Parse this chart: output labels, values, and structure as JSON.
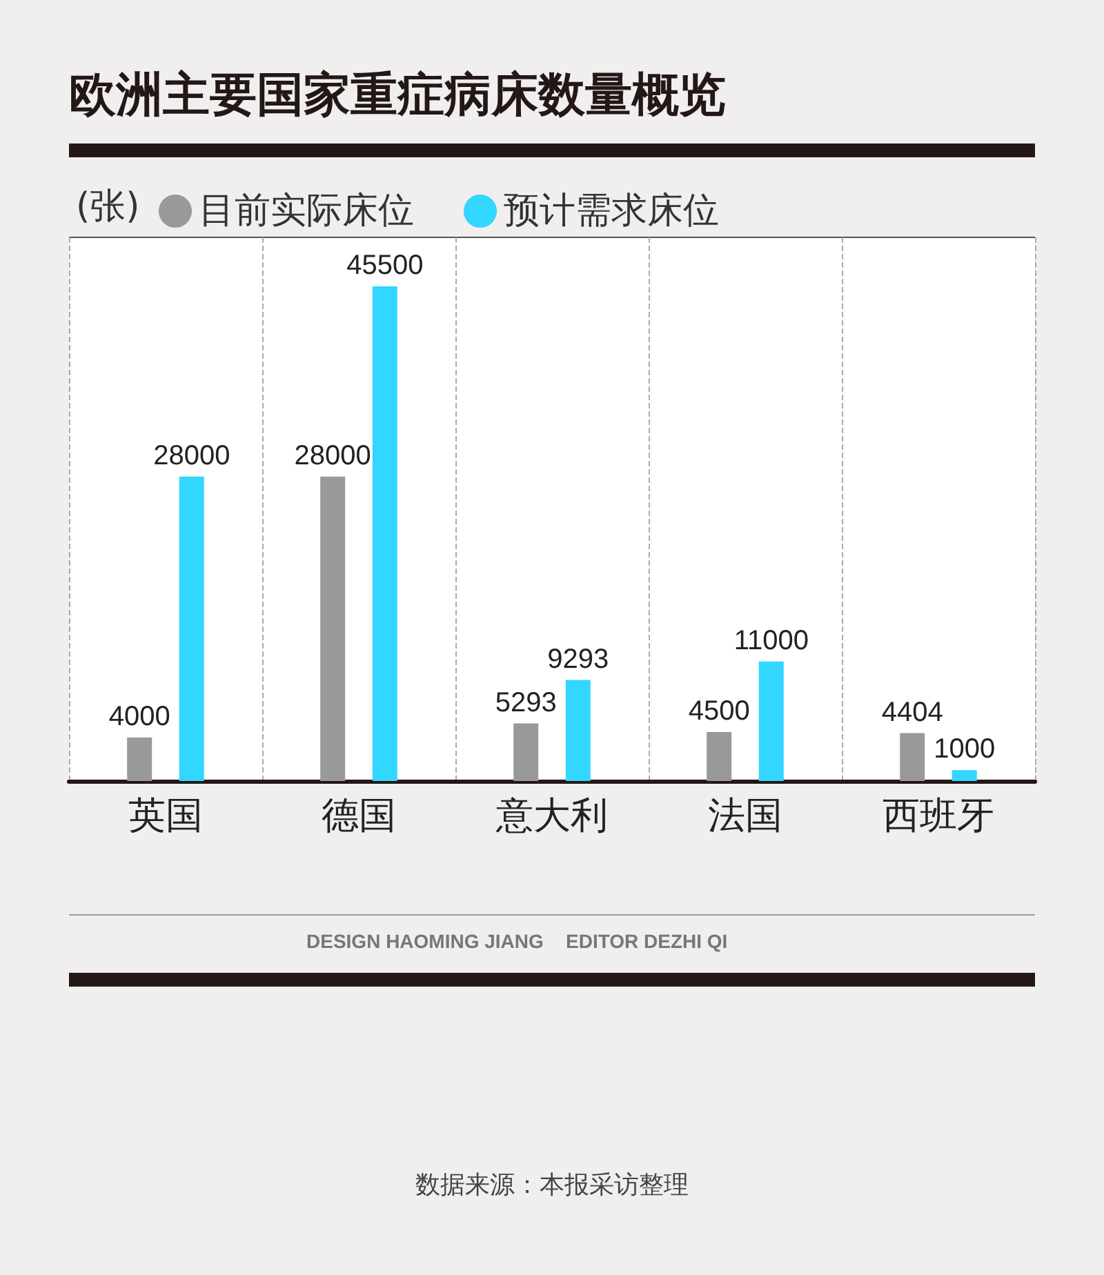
{
  "chart_data": {
    "type": "bar",
    "title": "欧洲主要国家重症病床数量概览",
    "ylabel": "(张)",
    "categories": [
      "英国",
      "德国",
      "意大利",
      "法国",
      "西班牙"
    ],
    "series": [
      {
        "name": "目前实际床位",
        "color": "#999999",
        "values": [
          4000,
          28000,
          5293,
          4500,
          4404
        ]
      },
      {
        "name": "预计需求床位",
        "color": "#33d6ff",
        "values": [
          28000,
          45500,
          9293,
          11000,
          1000
        ]
      }
    ],
    "data_labels": true,
    "grid": "x",
    "legend": "top left",
    "annotations": [
      "DESIGN HAOMING JIANG",
      "EDITOR DEZHI QI",
      "数据来源：本报采访整理"
    ]
  }
}
